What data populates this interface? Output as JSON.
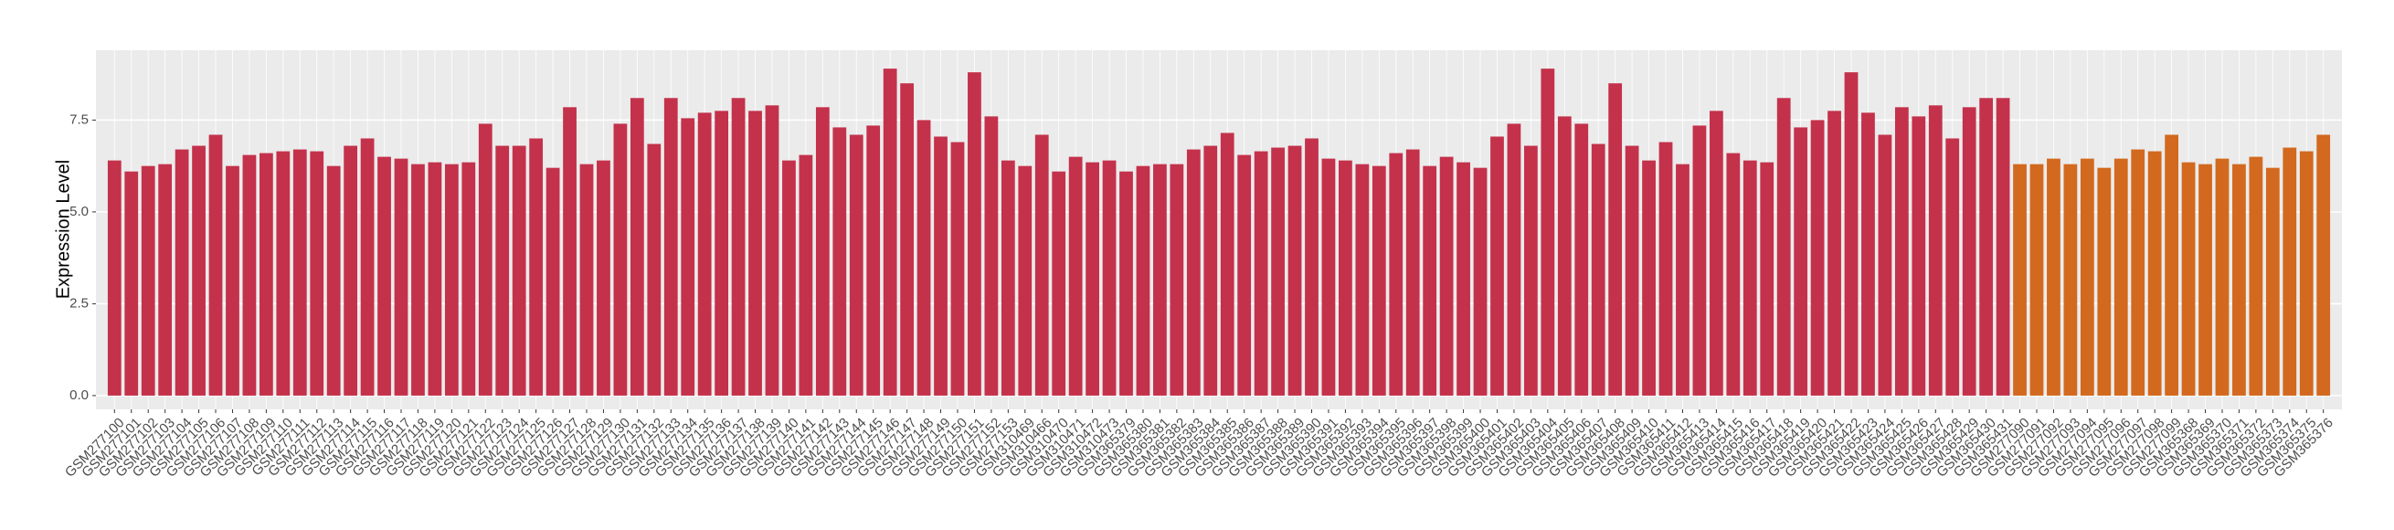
{
  "chart_data": {
    "type": "bar",
    "y_label": "Expression Level",
    "categories": [
      "GSM277100",
      "GSM277101",
      "GSM277102",
      "GSM277103",
      "GSM277104",
      "GSM277105",
      "GSM277106",
      "GSM277107",
      "GSM277108",
      "GSM277109",
      "GSM277110",
      "GSM277111",
      "GSM277112",
      "GSM277113",
      "GSM277114",
      "GSM277115",
      "GSM277116",
      "GSM277117",
      "GSM277118",
      "GSM277119",
      "GSM277120",
      "GSM277121",
      "GSM277122",
      "GSM277123",
      "GSM277124",
      "GSM277125",
      "GSM277126",
      "GSM277127",
      "GSM277128",
      "GSM277129",
      "GSM277130",
      "GSM277131",
      "GSM277132",
      "GSM277133",
      "GSM277134",
      "GSM277135",
      "GSM277136",
      "GSM277137",
      "GSM277138",
      "GSM277139",
      "GSM277140",
      "GSM277141",
      "GSM277142",
      "GSM277143",
      "GSM277144",
      "GSM277145",
      "GSM277146",
      "GSM277147",
      "GSM277148",
      "GSM277149",
      "GSM277150",
      "GSM277151",
      "GSM277152",
      "GSM277153",
      "GSM310469",
      "GSM310466",
      "GSM310470",
      "GSM310471",
      "GSM310472",
      "GSM310473",
      "GSM365379",
      "GSM365380",
      "GSM365381",
      "GSM365382",
      "GSM365383",
      "GSM365384",
      "GSM365385",
      "GSM365386",
      "GSM365387",
      "GSM365388",
      "GSM365389",
      "GSM365390",
      "GSM365391",
      "GSM365392",
      "GSM365393",
      "GSM365394",
      "GSM365395",
      "GSM365396",
      "GSM365397",
      "GSM365398",
      "GSM365399",
      "GSM365400",
      "GSM365401",
      "GSM365402",
      "GSM365403",
      "GSM365404",
      "GSM365405",
      "GSM365406",
      "GSM365407",
      "GSM365408",
      "GSM365409",
      "GSM365410",
      "GSM365411",
      "GSM365412",
      "GSM365413",
      "GSM365414",
      "GSM365415",
      "GSM365416",
      "GSM365417",
      "GSM365418",
      "GSM365419",
      "GSM365420",
      "GSM365421",
      "GSM365422",
      "GSM365423",
      "GSM365424",
      "GSM365425",
      "GSM365426",
      "GSM365427",
      "GSM365428",
      "GSM365429",
      "GSM365430",
      "GSM365431",
      "GSM277090",
      "GSM277091",
      "GSM277092",
      "GSM277093",
      "GSM277094",
      "GSM277095",
      "GSM277096",
      "GSM277097",
      "GSM277098",
      "GSM277099",
      "GSM365368",
      "GSM365369",
      "GSM365370",
      "GSM365371",
      "GSM365372",
      "GSM365373",
      "GSM365374",
      "GSM365375",
      "GSM365376"
    ],
    "values": [
      6.4,
      6.1,
      6.25,
      6.3,
      6.7,
      6.8,
      7.1,
      6.25,
      6.55,
      6.6,
      6.65,
      6.7,
      6.65,
      6.25,
      6.8,
      7.0,
      6.5,
      6.45,
      6.3,
      6.35,
      6.3,
      6.35,
      7.4,
      6.8,
      6.8,
      7.0,
      6.2,
      7.85,
      6.3,
      6.4,
      7.4,
      8.1,
      6.85,
      8.1,
      7.55,
      7.7,
      7.75,
      8.1,
      7.75,
      7.9,
      6.4,
      6.55,
      7.85,
      7.3,
      7.1,
      7.35,
      8.9,
      8.5,
      7.5,
      7.05,
      6.9,
      8.8,
      7.6,
      6.4,
      6.25,
      7.1,
      6.1,
      6.5,
      6.35,
      6.4,
      6.1,
      6.25,
      6.3,
      6.3,
      6.7,
      6.8,
      7.15,
      6.55,
      6.65,
      6.75,
      6.8,
      7.0,
      6.45,
      6.4,
      6.3,
      6.25,
      6.6,
      6.7,
      6.25,
      6.5,
      6.35,
      6.2,
      7.05,
      7.4,
      6.8,
      8.9,
      7.6,
      7.4,
      6.85,
      8.5,
      6.8,
      6.4,
      6.9,
      6.3,
      7.35,
      7.75,
      6.6,
      6.4,
      6.35,
      8.1,
      7.3,
      7.5,
      7.75,
      8.8,
      7.7,
      7.1,
      7.85,
      7.6,
      7.9,
      7.0,
      7.85,
      8.1,
      8.1,
      6.3,
      6.3,
      6.45,
      6.3,
      6.45,
      6.2,
      6.45,
      6.7,
      6.65,
      7.1,
      6.35,
      6.3,
      6.45,
      6.3,
      6.5,
      6.2,
      6.75,
      6.65,
      7.1
    ],
    "colors": [
      "#c4314b",
      "#c4314b",
      "#c4314b",
      "#c4314b",
      "#c4314b",
      "#c4314b",
      "#c4314b",
      "#c4314b",
      "#c4314b",
      "#c4314b",
      "#c4314b",
      "#c4314b",
      "#c4314b",
      "#c4314b",
      "#c4314b",
      "#c4314b",
      "#c4314b",
      "#c4314b",
      "#c4314b",
      "#c4314b",
      "#c4314b",
      "#c4314b",
      "#c4314b",
      "#c4314b",
      "#c4314b",
      "#c4314b",
      "#c4314b",
      "#c4314b",
      "#c4314b",
      "#c4314b",
      "#c4314b",
      "#c4314b",
      "#c4314b",
      "#c4314b",
      "#c4314b",
      "#c4314b",
      "#c4314b",
      "#c4314b",
      "#c4314b",
      "#c4314b",
      "#c4314b",
      "#c4314b",
      "#c4314b",
      "#c4314b",
      "#c4314b",
      "#c4314b",
      "#c4314b",
      "#c4314b",
      "#c4314b",
      "#c4314b",
      "#c4314b",
      "#c4314b",
      "#c4314b",
      "#c4314b",
      "#c4314b",
      "#c4314b",
      "#c4314b",
      "#c4314b",
      "#c4314b",
      "#c4314b",
      "#c4314b",
      "#c4314b",
      "#c4314b",
      "#c4314b",
      "#c4314b",
      "#c4314b",
      "#c4314b",
      "#c4314b",
      "#c4314b",
      "#c4314b",
      "#c4314b",
      "#c4314b",
      "#c4314b",
      "#c4314b",
      "#c4314b",
      "#c4314b",
      "#c4314b",
      "#c4314b",
      "#c4314b",
      "#c4314b",
      "#c4314b",
      "#c4314b",
      "#c4314b",
      "#c4314b",
      "#c4314b",
      "#c4314b",
      "#c4314b",
      "#c4314b",
      "#c4314b",
      "#c4314b",
      "#c4314b",
      "#c4314b",
      "#c4314b",
      "#c4314b",
      "#c4314b",
      "#c4314b",
      "#c4314b",
      "#c4314b",
      "#c4314b",
      "#c4314b",
      "#c4314b",
      "#c4314b",
      "#c4314b",
      "#c4314b",
      "#c4314b",
      "#c4314b",
      "#c4314b",
      "#c4314b",
      "#c4314b",
      "#c4314b",
      "#c4314b",
      "#c4314b",
      "#c4314b",
      "#d2691e",
      "#d2691e",
      "#d2691e",
      "#d2691e",
      "#d2691e",
      "#d2691e",
      "#d2691e",
      "#d2691e",
      "#d2691e",
      "#d2691e",
      "#d2691e",
      "#d2691e",
      "#d2691e",
      "#d2691e",
      "#d2691e",
      "#d2691e",
      "#d2691e",
      "#d2691e",
      "#d2691e"
    ],
    "ylim": [
      -0.375,
      9.4
    ],
    "yticks": [
      {
        "value": 0,
        "label": "0.0"
      },
      {
        "value": 2.5,
        "label": "2.5"
      },
      {
        "value": 5,
        "label": "5.0"
      },
      {
        "value": 7.5,
        "label": "7.5"
      }
    ],
    "grid": true
  }
}
